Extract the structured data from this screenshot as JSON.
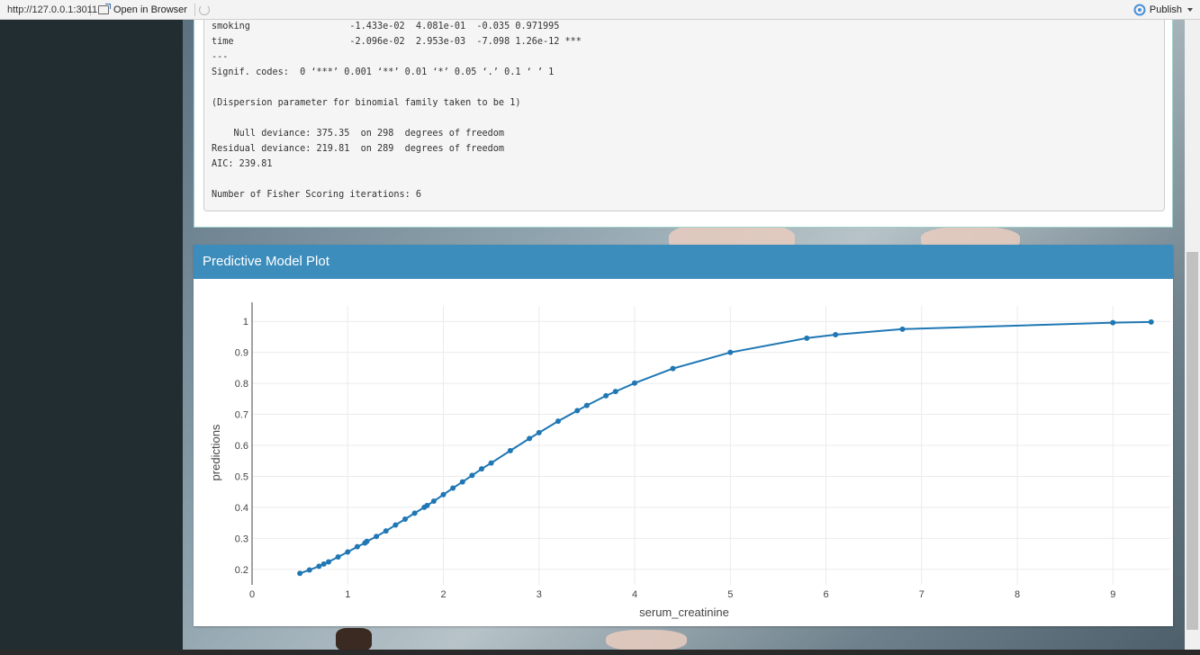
{
  "toolbar": {
    "url": "http://127.0.0.1:3011",
    "open_in_browser": "Open in Browser",
    "publish": "Publish"
  },
  "summary": {
    "lines": [
      "smoking                  -1.433e-02  4.081e-01  -0.035 0.971995",
      "time                     -2.096e-02  2.953e-03  -7.098 1.26e-12 ***",
      "---",
      "Signif. codes:  0 ‘***’ 0.001 ‘**’ 0.01 ‘*’ 0.05 ‘.’ 0.1 ‘ ’ 1",
      "",
      "(Dispersion parameter for binomial family taken to be 1)",
      "",
      "    Null deviance: 375.35  on 298  degrees of freedom",
      "Residual deviance: 219.81  on 289  degrees of freedom",
      "AIC: 239.81",
      "",
      "Number of Fisher Scoring iterations: 6"
    ]
  },
  "plot_box": {
    "title": "Predictive Model Plot"
  },
  "colors": {
    "header_blue": "#3c8dbc",
    "line_blue": "#1f77b4",
    "sidebar": "#222d32"
  },
  "chart_data": {
    "type": "line",
    "xlabel": "serum_creatinine",
    "ylabel": "predictions",
    "xlim": [
      0,
      9.6
    ],
    "ylim": [
      0.15,
      1.05
    ],
    "x_ticks": [
      0,
      1,
      2,
      3,
      4,
      5,
      6,
      7,
      8,
      9
    ],
    "y_ticks": [
      0.2,
      0.3,
      0.4,
      0.5,
      0.6,
      0.7,
      0.8,
      0.9,
      1
    ],
    "y_tick_labels": [
      "0.2",
      "0.3",
      "0.4",
      "0.5",
      "0.6",
      "0.7",
      "0.8",
      "0.9",
      "1"
    ],
    "grid": true,
    "series": [
      {
        "x": [
          0.5,
          0.6,
          0.7,
          0.75,
          0.8,
          0.9,
          1.0,
          1.1,
          1.18,
          1.2,
          1.3,
          1.4,
          1.5,
          1.6,
          1.7,
          1.8,
          1.83,
          1.9,
          2.0,
          2.1,
          2.2,
          2.3,
          2.4,
          2.5,
          2.7,
          2.9,
          3.0,
          3.2,
          3.4,
          3.5,
          3.7,
          3.8,
          4.0,
          4.4,
          5.0,
          5.8,
          6.1,
          6.8,
          9.0,
          9.4
        ],
        "y": [
          0.187,
          0.198,
          0.21,
          0.217,
          0.224,
          0.24,
          0.256,
          0.273,
          0.285,
          0.29,
          0.306,
          0.324,
          0.343,
          0.362,
          0.381,
          0.4,
          0.406,
          0.42,
          0.441,
          0.462,
          0.482,
          0.503,
          0.524,
          0.543,
          0.583,
          0.622,
          0.641,
          0.678,
          0.712,
          0.729,
          0.76,
          0.774,
          0.801,
          0.848,
          0.9,
          0.946,
          0.957,
          0.975,
          0.996,
          0.998
        ]
      }
    ]
  }
}
